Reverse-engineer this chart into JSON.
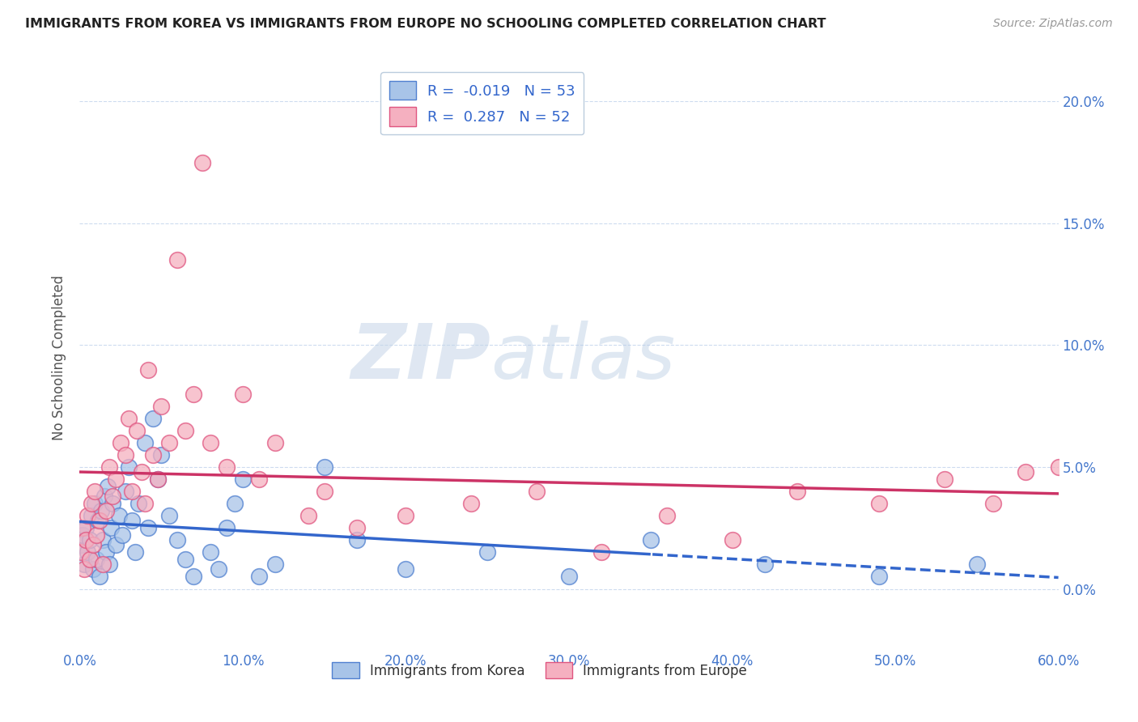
{
  "title": "IMMIGRANTS FROM KOREA VS IMMIGRANTS FROM EUROPE NO SCHOOLING COMPLETED CORRELATION CHART",
  "source": "Source: ZipAtlas.com",
  "ylabel": "No Schooling Completed",
  "xlim": [
    0.0,
    0.6
  ],
  "ylim": [
    -0.025,
    0.215
  ],
  "xticks": [
    0.0,
    0.1,
    0.2,
    0.3,
    0.4,
    0.5,
    0.6
  ],
  "yticks": [
    0.0,
    0.05,
    0.1,
    0.15,
    0.2
  ],
  "ytick_labels": [
    "0.0%",
    "5.0%",
    "10.0%",
    "15.0%",
    "20.0%"
  ],
  "xtick_labels": [
    "0.0%",
    "10.0%",
    "20.0%",
    "30.0%",
    "40.0%",
    "50.0%",
    "60.0%"
  ],
  "korea_color": "#a8c4e8",
  "europe_color": "#f5b0c0",
  "korea_edge_color": "#5080d0",
  "europe_edge_color": "#e05580",
  "korea_line_color": "#3366cc",
  "europe_line_color": "#cc3366",
  "korea_R": -0.019,
  "korea_N": 53,
  "europe_R": 0.287,
  "europe_N": 52,
  "watermark_zip": "ZIP",
  "watermark_atlas": "atlas",
  "korea_x": [
    0.001,
    0.002,
    0.003,
    0.004,
    0.005,
    0.006,
    0.007,
    0.008,
    0.009,
    0.01,
    0.011,
    0.012,
    0.013,
    0.014,
    0.015,
    0.016,
    0.017,
    0.018,
    0.019,
    0.02,
    0.022,
    0.024,
    0.026,
    0.028,
    0.03,
    0.032,
    0.034,
    0.036,
    0.04,
    0.042,
    0.045,
    0.048,
    0.05,
    0.055,
    0.06,
    0.065,
    0.07,
    0.08,
    0.085,
    0.09,
    0.095,
    0.1,
    0.11,
    0.12,
    0.15,
    0.17,
    0.2,
    0.25,
    0.3,
    0.35,
    0.42,
    0.49,
    0.55
  ],
  "korea_y": [
    0.018,
    0.022,
    0.01,
    0.025,
    0.015,
    0.02,
    0.03,
    0.008,
    0.035,
    0.012,
    0.028,
    0.005,
    0.032,
    0.02,
    0.038,
    0.015,
    0.042,
    0.01,
    0.025,
    0.035,
    0.018,
    0.03,
    0.022,
    0.04,
    0.05,
    0.028,
    0.015,
    0.035,
    0.06,
    0.025,
    0.07,
    0.045,
    0.055,
    0.03,
    0.02,
    0.012,
    0.005,
    0.015,
    0.008,
    0.025,
    0.035,
    0.045,
    0.005,
    0.01,
    0.05,
    0.02,
    0.008,
    0.015,
    0.005,
    0.02,
    0.01,
    0.005,
    0.01
  ],
  "europe_x": [
    0.001,
    0.002,
    0.003,
    0.004,
    0.005,
    0.006,
    0.007,
    0.008,
    0.009,
    0.01,
    0.012,
    0.014,
    0.016,
    0.018,
    0.02,
    0.022,
    0.025,
    0.028,
    0.03,
    0.032,
    0.035,
    0.038,
    0.04,
    0.042,
    0.045,
    0.048,
    0.05,
    0.055,
    0.06,
    0.065,
    0.07,
    0.075,
    0.08,
    0.09,
    0.1,
    0.11,
    0.12,
    0.14,
    0.15,
    0.17,
    0.2,
    0.24,
    0.28,
    0.32,
    0.36,
    0.4,
    0.44,
    0.49,
    0.53,
    0.56,
    0.58,
    0.6
  ],
  "europe_y": [
    0.015,
    0.025,
    0.008,
    0.02,
    0.03,
    0.012,
    0.035,
    0.018,
    0.04,
    0.022,
    0.028,
    0.01,
    0.032,
    0.05,
    0.038,
    0.045,
    0.06,
    0.055,
    0.07,
    0.04,
    0.065,
    0.048,
    0.035,
    0.09,
    0.055,
    0.045,
    0.075,
    0.06,
    0.135,
    0.065,
    0.08,
    0.175,
    0.06,
    0.05,
    0.08,
    0.045,
    0.06,
    0.03,
    0.04,
    0.025,
    0.03,
    0.035,
    0.04,
    0.015,
    0.03,
    0.02,
    0.04,
    0.035,
    0.045,
    0.035,
    0.048,
    0.05
  ]
}
